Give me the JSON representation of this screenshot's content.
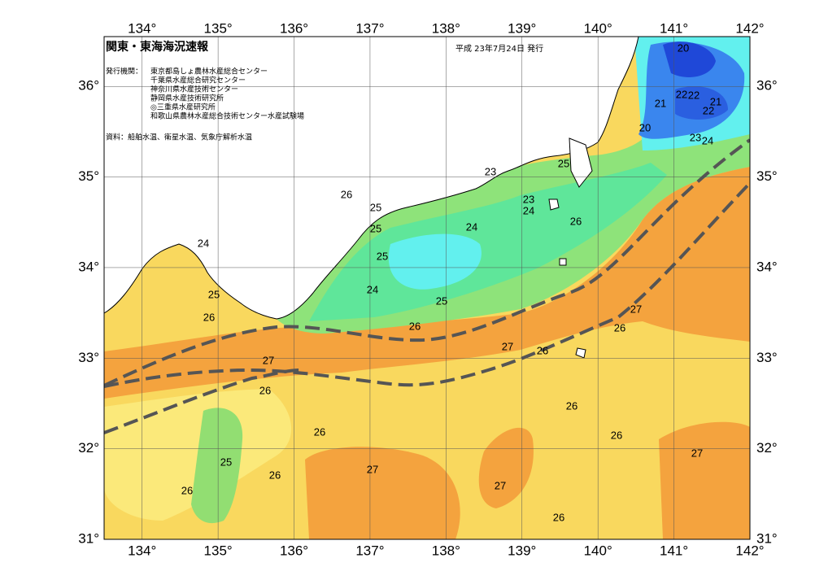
{
  "header": {
    "title": "関東・東海海況速報",
    "date": "平成 23年7月24日 発行",
    "issuer_label": "発行機関：",
    "issuers": [
      "東京都島しょ農林水産総合センター",
      "千葉県水産総合研究センター",
      "神奈川県水産技術センター",
      "静岡県水産技術研究所",
      "◎三重県水産研究所",
      "和歌山県農林水産総合技術センター水産試験場"
    ],
    "source": "資料：船舶水温、衛星水温、気象庁解析水温"
  },
  "map": {
    "xlim": [
      133.5,
      142
    ],
    "ylim": [
      31,
      36.55
    ],
    "lon_ticks": [
      {
        "value": 134,
        "label": "134°"
      },
      {
        "value": 135,
        "label": "135°"
      },
      {
        "value": 136,
        "label": "136°"
      },
      {
        "value": 137,
        "label": "137°"
      },
      {
        "value": 138,
        "label": "138°"
      },
      {
        "value": 139,
        "label": "139°"
      },
      {
        "value": 140,
        "label": "140°"
      },
      {
        "value": 141,
        "label": "141°"
      },
      {
        "value": 142,
        "label": "142°"
      }
    ],
    "lat_ticks": [
      {
        "value": 31,
        "label": "31°"
      },
      {
        "value": 32,
        "label": "32°"
      },
      {
        "value": 33,
        "label": "33°"
      },
      {
        "value": 34,
        "label": "34°"
      },
      {
        "value": 35,
        "label": "35°"
      },
      {
        "value": 36,
        "label": "36°"
      }
    ],
    "contour_labels": [
      20,
      22,
      22,
      21,
      21,
      22,
      20,
      23,
      24,
      23,
      25,
      26,
      25,
      25,
      23,
      24,
      26,
      24,
      24,
      25,
      24,
      25,
      25,
      26,
      26,
      27,
      26,
      27,
      26,
      27,
      26,
      26,
      26,
      26,
      27,
      25,
      26,
      27,
      27,
      26,
      26
    ]
  }
}
